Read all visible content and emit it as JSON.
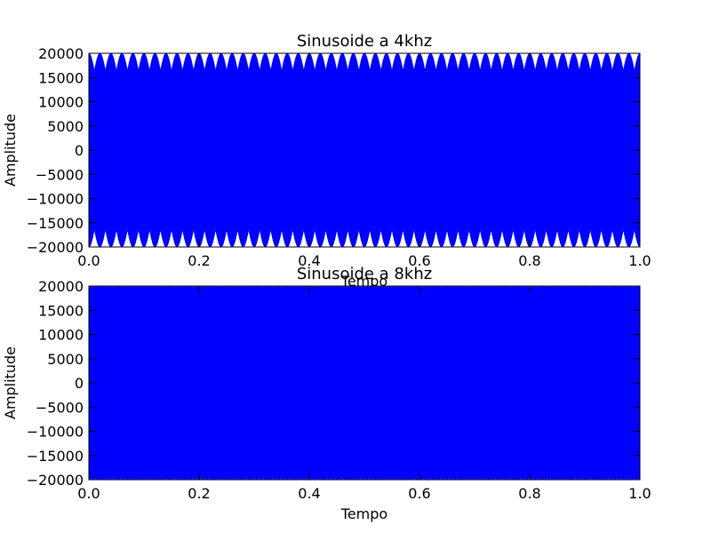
{
  "chart_data": [
    {
      "type": "line",
      "title": "Sinusoide a 4khz",
      "xlabel": "Tempo",
      "ylabel": "Amplitude",
      "xlim": [
        0.0,
        1.0
      ],
      "ylim": [
        -20000,
        20000
      ],
      "xticks": [
        "0.0",
        "0.2",
        "0.4",
        "0.6",
        "0.8",
        "1.0"
      ],
      "yticks": [
        "20000",
        "15000",
        "10000",
        "5000",
        "0",
        "−5000",
        "−10000",
        "−15000",
        "−20000"
      ],
      "series": [
        {
          "color": "#0000ff",
          "frequency_hz": 4000,
          "amplitude": 20000,
          "visible_envelope_period": 0.02
        }
      ]
    },
    {
      "type": "line",
      "title": "Sinusoide a 8khz",
      "xlabel": "Tempo",
      "ylabel": "Amplitude",
      "xlim": [
        0.0,
        1.0
      ],
      "ylim": [
        -20000,
        20000
      ],
      "xticks": [
        "0.0",
        "0.2",
        "0.4",
        "0.6",
        "0.8",
        "1.0"
      ],
      "yticks": [
        "20000",
        "15000",
        "10000",
        "5000",
        "0",
        "−5000",
        "−10000",
        "−15000",
        "−20000"
      ],
      "series": [
        {
          "color": "#0000ff",
          "frequency_hz": 8000,
          "amplitude": 20000,
          "visible_envelope_period": 0.005
        }
      ]
    }
  ]
}
